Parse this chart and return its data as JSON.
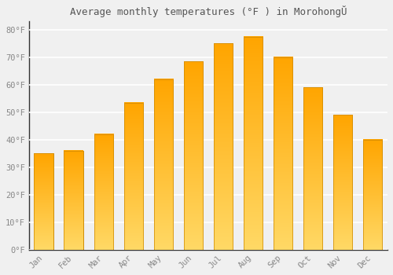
{
  "title": "Average monthly temperatures (°F ) in MorohongŬ",
  "months": [
    "Jan",
    "Feb",
    "Mar",
    "Apr",
    "May",
    "Jun",
    "Jul",
    "Aug",
    "Sep",
    "Oct",
    "Nov",
    "Dec"
  ],
  "values": [
    35,
    36,
    42,
    53.5,
    62,
    68.5,
    75,
    77.5,
    70,
    59,
    49,
    40
  ],
  "bar_color_top": "#FFD966",
  "bar_color_bottom": "#FFA500",
  "bar_edge_color": "#CC8800",
  "ylim": [
    0,
    83
  ],
  "yticks": [
    0,
    10,
    20,
    30,
    40,
    50,
    60,
    70,
    80
  ],
  "ytick_labels": [
    "0°F",
    "10°F",
    "20°F",
    "30°F",
    "40°F",
    "50°F",
    "60°F",
    "70°F",
    "80°F"
  ],
  "background_color": "#f0f0f0",
  "plot_bg_color": "#f0f0f0",
  "grid_color": "#ffffff",
  "title_fontsize": 9,
  "tick_fontsize": 7.5,
  "axis_color": "#888888",
  "spine_color": "#333333",
  "bar_width": 0.65
}
